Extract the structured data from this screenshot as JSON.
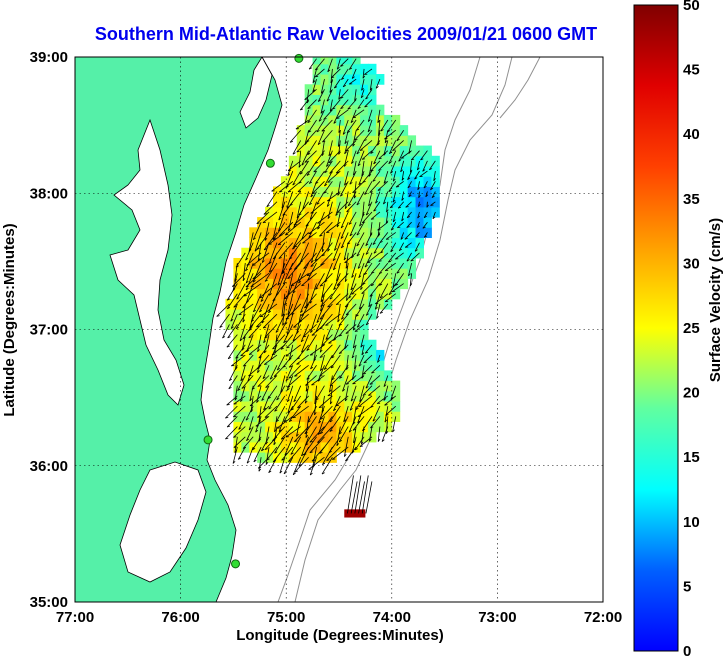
{
  "chart_data": {
    "type": "heatmap",
    "title": "Southern Mid-Atlantic Raw Velocities 2009/01/21 0600 GMT",
    "xlabel": "Longitude (Degrees:Minutes)",
    "ylabel": "Latitude (Degrees:Minutes)",
    "xlim": [
      -77,
      -72
    ],
    "ylim": [
      35,
      39
    ],
    "x_ticks": [
      "77:00",
      "76:00",
      "75:00",
      "74:00",
      "73:00",
      "72:00"
    ],
    "y_ticks": [
      "35:00",
      "36:00",
      "37:00",
      "38:00",
      "39:00"
    ],
    "grid": true,
    "colorbar": {
      "label": "Surface Velocity (cm/s)",
      "range": [
        0,
        50
      ],
      "ticks": [
        "0",
        "5",
        "10",
        "15",
        "20",
        "25",
        "30",
        "35",
        "40",
        "45",
        "50"
      ]
    },
    "land_color": "#55f0a8",
    "radar_sites": [
      {
        "lon": -74.88,
        "lat": 38.99
      },
      {
        "lon": -75.15,
        "lat": 38.22
      },
      {
        "lon": -75.74,
        "lat": 36.19
      },
      {
        "lon": -75.48,
        "lat": 35.28
      }
    ]
  }
}
